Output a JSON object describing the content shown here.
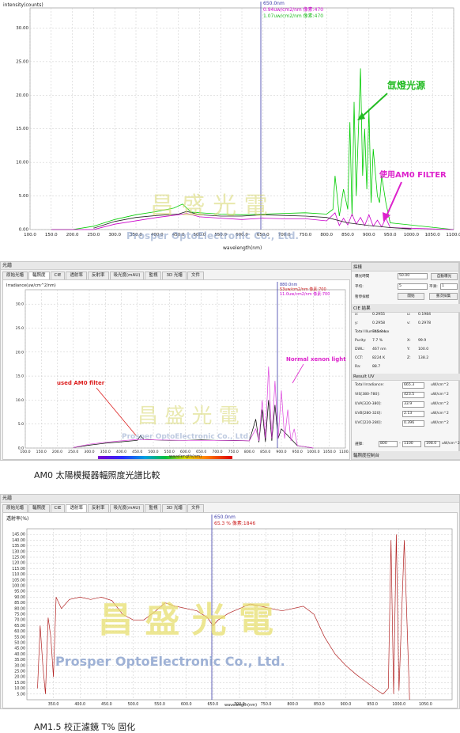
{
  "chart1": {
    "ylabel": "intensity(counts)",
    "xlabel": "wavelength(nm)",
    "cursor": {
      "line1": "650.0nm",
      "line2": "0.94uw/cm2/nm 像素:470",
      "line3": "1.07uw/cm2/nm 像素:470"
    },
    "annot_xenon": "氙燈光源",
    "annot_filter": "使用AM0 FILTER",
    "watermark_cn": "昌 盛 光 電",
    "watermark_en": "Prosper OptoElectronic Co., Ltd.",
    "colors": {
      "xenon": "#00cc00",
      "filter": "#cc00cc",
      "black": "#222222",
      "cursor": "#3a3aa8",
      "arrow_green": "#22bb22",
      "arrow_pink": "#dd22cc"
    }
  },
  "app2": {
    "window_title": "光譜",
    "tabs": [
      "原始光譜",
      "輻照度",
      "CIE",
      "透射率",
      "反射率",
      "吸光度(mAU)",
      "監視",
      "3D 光譜",
      "文件"
    ],
    "active_tab": "輻照度",
    "ylabel": "Irradiance(uw/cm^2/nm)",
    "xlabel": "wavelength(nm)",
    "cursor": {
      "line1": "880.0nm",
      "line2": "53uw/cm2/nm 像素:700",
      "line3": "11.0uw/cm2/nm 像素:700"
    },
    "annot_normal": "Normal xenon light",
    "annot_am0": "used AM0 filter",
    "watermark_cn": "昌 盛 光 電",
    "watermark_en": "Prosper OptoElectronic Co., Ltd.",
    "right_panel": {
      "sec1": "採樣",
      "exposure_label": "曝光時間",
      "exposure_value": "50.00",
      "auto_exposure": "自動曝光",
      "avg_label": "平均:",
      "avg_value": "5",
      "smooth_label": "平滑:",
      "smooth_value": "1",
      "pause_label": "暫停採樣",
      "start_btn": "開始",
      "repeat_btn": "重次採集",
      "sec2": "CIE 結果",
      "cie": [
        {
          "a": "x:",
          "b": "0.2955",
          "c": "u:",
          "d": "0.1984"
        },
        {
          "a": "y:",
          "b": "0.2958",
          "c": "v:",
          "d": "0.2978"
        },
        {
          "a": "Total Illuminance:",
          "b": "745.9 lux",
          "c": "",
          "d": ""
        },
        {
          "a": "Purity:",
          "b": "7.7 %",
          "c": "X:",
          "d": "99.9"
        },
        {
          "a": "DWL:",
          "b": "467 nm",
          "c": "Y:",
          "d": "100.0"
        },
        {
          "a": "CCT:",
          "b": "8224 K",
          "c": "Z:",
          "d": "138.2"
        },
        {
          "a": "Ra:",
          "b": "88.7",
          "c": "",
          "d": ""
        }
      ],
      "sec3": "Result UV",
      "uv": [
        {
          "label": "Total Irradiance:",
          "value": "665.3",
          "unit": "uW/cm^2"
        },
        {
          "label": "VIS[380-780]:",
          "value": "423.5",
          "unit": "uW/cm^2"
        },
        {
          "label": "UVA[320-380]:",
          "value": "33.9",
          "unit": "uW/cm^2"
        },
        {
          "label": "UVB[280-320]:",
          "value": "2.13",
          "unit": "uW/cm^2"
        },
        {
          "label": "UVC[220-280]:",
          "value": "0.396",
          "unit": "uW/cm^2"
        }
      ],
      "range_label": "選擇:",
      "range_from": "800",
      "range_to": "1100",
      "range_extra": "198.0",
      "range_unit": "uW/cm^2",
      "sec4": "輻照度控制台"
    }
  },
  "caption1": "AM0 太陽模擬器輻照度光譜比較",
  "app3": {
    "window_title": "光譜",
    "tabs": [
      "原始光譜",
      "輻照度",
      "CIE",
      "透射率",
      "反射率",
      "吸光度(mAU)",
      "監視",
      "3D 光譜",
      "文件"
    ],
    "active_tab": "透射率",
    "ylabel": "透射率(%)",
    "xlabel": "wavelength(nm)",
    "cursor": {
      "line1": "650.0nm",
      "line2": "65.3 % 像素:1846"
    },
    "watermark_cn": "昌 盛 光 電",
    "watermark_en": "Prosper OptoElectronic Co., Ltd."
  },
  "caption2": "AM1.5 校正濾鏡 T% 固化",
  "chart_data": [
    {
      "type": "line",
      "title": "",
      "xlabel": "wavelength(nm)",
      "ylabel": "intensity(counts)",
      "xlim": [
        100,
        1100
      ],
      "ylim": [
        0,
        33
      ],
      "x_ticks": [
        "100.0",
        "150.0",
        "200.0",
        "250.0",
        "300.0",
        "350.0",
        "400.0",
        "450.0",
        "500.0",
        "550.0",
        "600.0",
        "650.0",
        "700.0",
        "750.0",
        "800.0",
        "850.0",
        "900.0",
        "950.0",
        "1000.0",
        "1050.0",
        "1100.0"
      ],
      "y_ticks": [
        "0.00",
        "5.00",
        "10.00",
        "15.00",
        "20.00",
        "25.00",
        "30.00"
      ],
      "series": [
        {
          "color": "#00cc00",
          "x": [
            150,
            200,
            250,
            300,
            350,
            400,
            440,
            460,
            480,
            500,
            550,
            600,
            650,
            700,
            750,
            800,
            815,
            820,
            830,
            840,
            850,
            855,
            860,
            865,
            870,
            880,
            885,
            890,
            895,
            900,
            905,
            910,
            920,
            925,
            930,
            940,
            950,
            1100
          ],
          "y": [
            0,
            0,
            0.5,
            1.5,
            2.2,
            2.7,
            3.2,
            3.8,
            2.6,
            2.5,
            2.3,
            2.2,
            2.3,
            2.4,
            2.5,
            2.3,
            3,
            8,
            2,
            6,
            3,
            16,
            2,
            19,
            5,
            24,
            8,
            15,
            6,
            18,
            4,
            12,
            5,
            4,
            8,
            4,
            1,
            0
          ]
        },
        {
          "color": "#cc00cc",
          "x": [
            150,
            250,
            300,
            400,
            450,
            470,
            500,
            600,
            650,
            700,
            750,
            800,
            820,
            830,
            840,
            850,
            860,
            870,
            880,
            890,
            900,
            910,
            920,
            930,
            940,
            950,
            1100
          ],
          "y": [
            0,
            0,
            0.8,
            1.8,
            2.2,
            2.4,
            1.9,
            1.5,
            1.7,
            1.6,
            1.6,
            1.3,
            2.5,
            0.6,
            1.7,
            0.7,
            2.3,
            0.8,
            1.8,
            0.6,
            2.2,
            0.5,
            1.4,
            0.4,
            1.7,
            0.3,
            0
          ]
        },
        {
          "color": "#222222",
          "x": [
            250,
            300,
            350,
            400,
            450,
            470,
            500,
            550,
            600,
            650,
            700,
            750,
            800,
            850,
            900,
            950,
            1000
          ],
          "y": [
            0.2,
            1.2,
            1.8,
            2.1,
            2.3,
            2.7,
            2.2,
            2.0,
            2.0,
            2.2,
            2.1,
            2.0,
            1.8,
            1.0,
            0.6,
            0.3,
            0.1
          ]
        }
      ]
    },
    {
      "type": "line",
      "title": "",
      "xlabel": "wavelength(nm)",
      "ylabel": "Irradiance(uw/cm^2/nm)",
      "xlim": [
        100,
        1100
      ],
      "ylim": [
        0,
        33
      ],
      "x_ticks": [
        "100.0",
        "150.0",
        "200.0",
        "250.0",
        "300.0",
        "350.0",
        "400.0",
        "450.0",
        "500.0",
        "550.0",
        "600.0",
        "650.0",
        "700.0",
        "750.0",
        "800.0",
        "850.0",
        "900.0",
        "950.0",
        "1000.0",
        "1050.0",
        "1100.0"
      ],
      "y_ticks": [
        "0.0",
        "5.0",
        "10.0",
        "15.0",
        "20.0",
        "25.0",
        "30.0"
      ],
      "series": [
        {
          "color": "#000000",
          "x": [
            250,
            300,
            350,
            400,
            450,
            460,
            470,
            500,
            550,
            600,
            650,
            700,
            750,
            800,
            820,
            830,
            840,
            850,
            860,
            870,
            880,
            890,
            900,
            950,
            1000
          ],
          "y": [
            0.1,
            0.6,
            1.0,
            1.3,
            1.6,
            2.6,
            1.8,
            1.7,
            1.6,
            1.6,
            1.7,
            1.6,
            1.6,
            1.5,
            6,
            1.2,
            8,
            1.3,
            10,
            1.5,
            9,
            2,
            4,
            0.5,
            0
          ]
        },
        {
          "color": "#dd44dd",
          "x": [
            250,
            300,
            350,
            400,
            450,
            500,
            600,
            700,
            800,
            820,
            830,
            840,
            850,
            860,
            870,
            880,
            890,
            900,
            910,
            920,
            930,
            940,
            950,
            1000
          ],
          "y": [
            0.1,
            0.8,
            1.2,
            1.5,
            1.8,
            1.7,
            1.6,
            1.6,
            1.5,
            4,
            1.5,
            10,
            2,
            17,
            2,
            14,
            2,
            12,
            2,
            8,
            1.5,
            4,
            0.5,
            0
          ]
        }
      ]
    },
    {
      "type": "line",
      "title": "",
      "xlabel": "wavelength(nm)",
      "ylabel": "透射率(%)",
      "xlim": [
        300,
        1100
      ],
      "ylim": [
        0,
        150
      ],
      "x_ticks": [
        "350.0",
        "400.0",
        "450.0",
        "500.0",
        "550.0",
        "600.0",
        "650.0",
        "700.0",
        "750.0",
        "800.0",
        "850.0",
        "900.0",
        "950.0",
        "1000.0",
        "1050.0"
      ],
      "y_ticks": [
        "5.00",
        "10.00",
        "15.00",
        "20.00",
        "25.00",
        "30.00",
        "35.00",
        "40.00",
        "45.00",
        "50.00",
        "55.00",
        "60.00",
        "65.00",
        "70.00",
        "75.00",
        "80.00",
        "85.00",
        "90.00",
        "95.00",
        "100.00",
        "105.00",
        "110.00",
        "115.00",
        "120.00",
        "125.00",
        "130.00",
        "135.00",
        "140.00",
        "145.00"
      ],
      "series": [
        {
          "color": "#b22222",
          "x": [
            320,
            325,
            330,
            335,
            340,
            345,
            350,
            355,
            360,
            365,
            380,
            400,
            420,
            440,
            460,
            480,
            500,
            520,
            540,
            560,
            580,
            600,
            620,
            640,
            650,
            660,
            680,
            700,
            720,
            740,
            760,
            780,
            800,
            820,
            840,
            860,
            880,
            900,
            920,
            940,
            960,
            970,
            980,
            985,
            990,
            995,
            1000,
            1010,
            1020
          ],
          "y": [
            10,
            65,
            30,
            5,
            72,
            55,
            20,
            90,
            85,
            80,
            88,
            90,
            88,
            90,
            87,
            75,
            70,
            70,
            77,
            85,
            82,
            80,
            78,
            72,
            65,
            70,
            76,
            80,
            84,
            82,
            80,
            78,
            80,
            82,
            75,
            55,
            40,
            30,
            22,
            15,
            8,
            5,
            10,
            140,
            5,
            145,
            8,
            140,
            0
          ]
        }
      ]
    }
  ]
}
